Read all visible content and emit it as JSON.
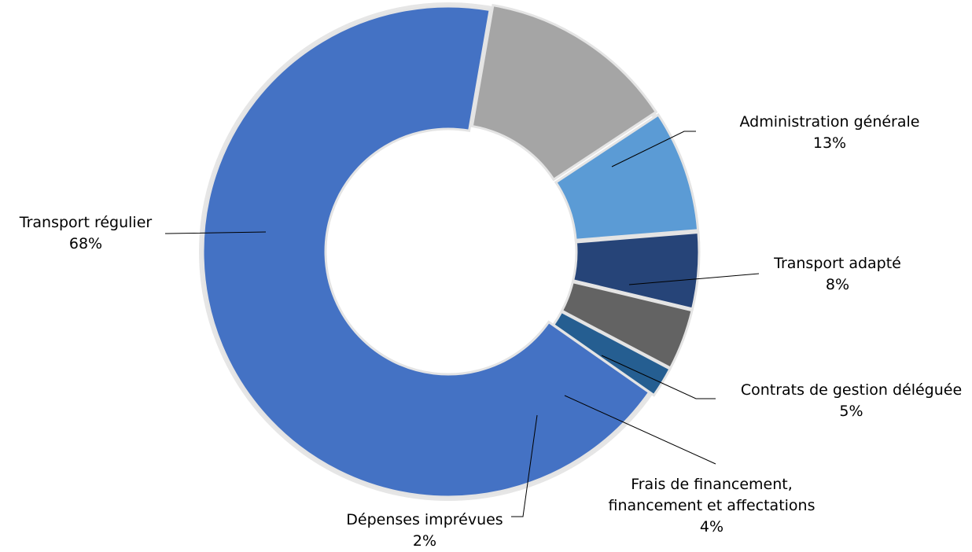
{
  "chart_data": {
    "type": "pie",
    "style": "doughnut",
    "title": "",
    "slices": [
      {
        "label": "Transport régulier",
        "value": 68,
        "value_text": "68%",
        "color": "#4472C4"
      },
      {
        "label": "Administration générale",
        "value": 13,
        "value_text": "13%",
        "color": "#A5A5A5"
      },
      {
        "label": "Transport adapté",
        "value": 8,
        "value_text": "8%",
        "color": "#5B9BD5"
      },
      {
        "label": "Contrats de gestion déléguée",
        "value": 5,
        "value_text": "5%",
        "color": "#264478"
      },
      {
        "label": "Frais de financement,\nfinancement et affectations",
        "value": 4,
        "value_text": "4%",
        "color": "#636363"
      },
      {
        "label": "Dépenses imprévues",
        "value": 2,
        "value_text": "2%",
        "color": "#255E91"
      }
    ],
    "legend": "none",
    "data_labels": "outside with leader lines"
  }
}
